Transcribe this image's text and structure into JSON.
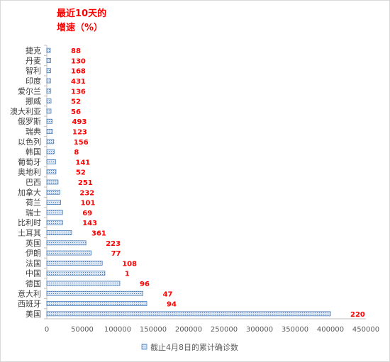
{
  "chart_data": {
    "type": "bar",
    "orientation": "horizontal",
    "title": "最近10天的增速（%）",
    "title_lines": [
      "最近10天的",
      "增速（%）"
    ],
    "categories": [
      "捷克",
      "丹麦",
      "智利",
      "印度",
      "爱尔兰",
      "挪威",
      "澳大利亚",
      "俄罗斯",
      "瑞典",
      "以色列",
      "韩国",
      "葡萄牙",
      "奥地利",
      "巴西",
      "加拿大",
      "荷兰",
      "瑞士",
      "比利时",
      "土耳其",
      "英国",
      "伊朗",
      "法国",
      "中国",
      "德国",
      "意大利",
      "西班牙",
      "美国"
    ],
    "series": [
      {
        "name": "截止4月8日的累计确诊数",
        "values": [
          5000,
          5500,
          5500,
          5300,
          5700,
          6000,
          6000,
          7500,
          8000,
          9800,
          10400,
          12400,
          12900,
          15900,
          18400,
          19600,
          22200,
          22200,
          35000,
          55200,
          62600,
          78200,
          81900,
          103000,
          135600,
          141000,
          400000
        ]
      }
    ],
    "growth_labels": [
      "88",
      "130",
      "168",
      "431",
      "136",
      "52",
      "56",
      "493",
      "123",
      "156",
      "8",
      "141",
      "52",
      "251",
      "232",
      "101",
      "69",
      "143",
      "361",
      "223",
      "77",
      "108",
      "1",
      "96",
      "47",
      "94",
      "220"
    ],
    "x_ticks": [
      "0",
      "50000",
      "100000",
      "150000",
      "200000",
      "250000",
      "300000",
      "350000",
      "400000",
      "450000"
    ],
    "xlim": [
      0,
      450000
    ],
    "legend_position": "bottom",
    "grid": false,
    "colors": {
      "bar_fill": "#dce6f2",
      "bar_border": "#4a7ebb",
      "label": "#ff0000"
    }
  }
}
